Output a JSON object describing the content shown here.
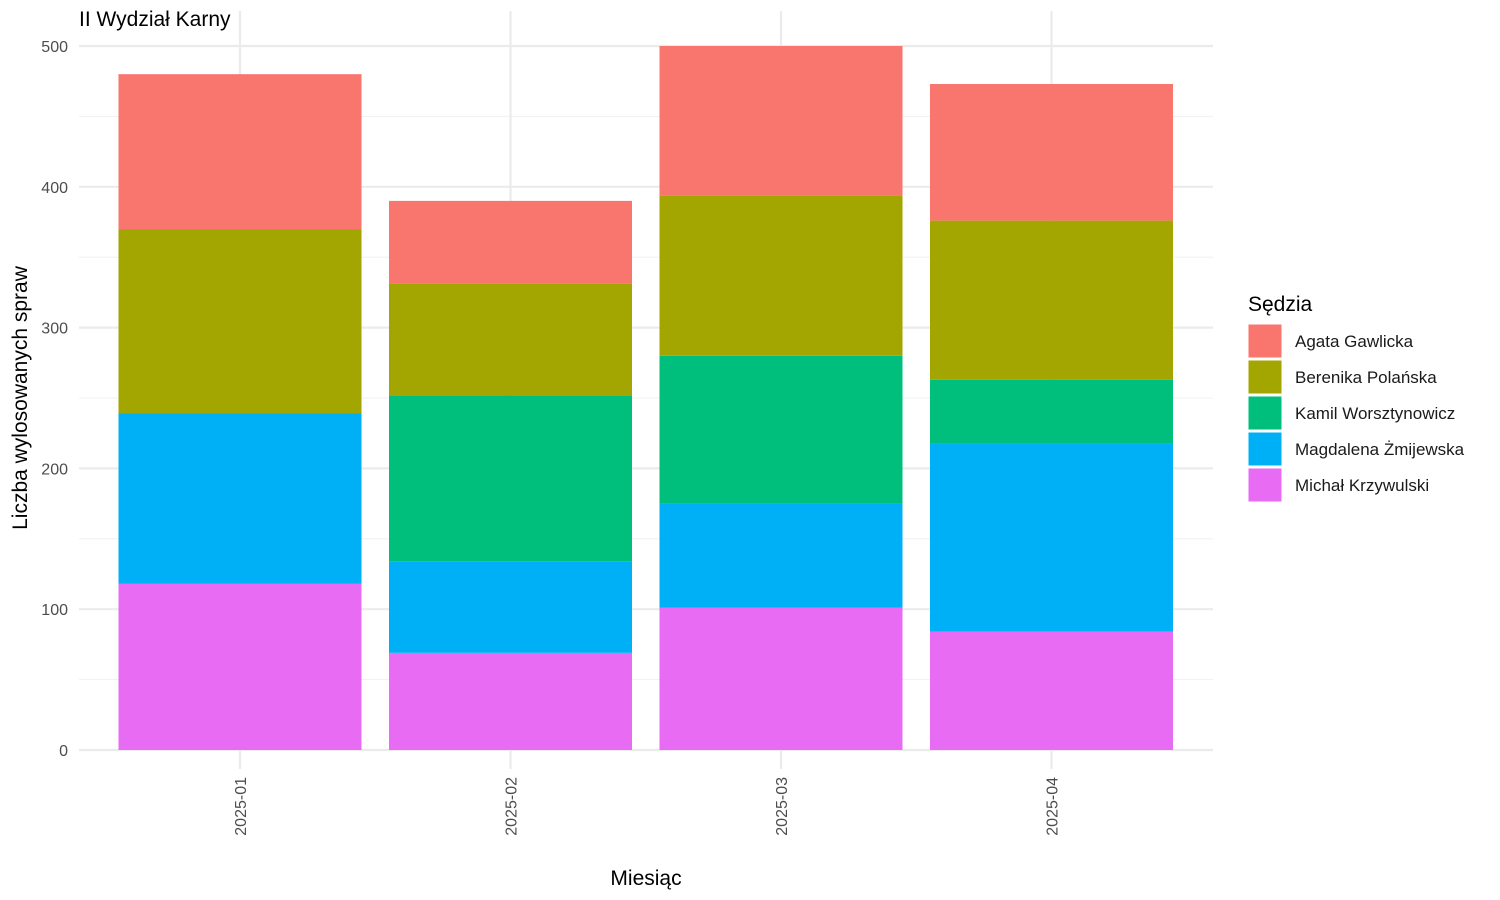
{
  "chart_data": {
    "type": "bar",
    "stacked": true,
    "title": "II Wydział Karny",
    "xlabel": "Miesiąc",
    "ylabel": "Liczba wylosowanych spraw",
    "categories": [
      "2025-01",
      "2025-02",
      "2025-03",
      "2025-04"
    ],
    "ylim": [
      0,
      500
    ],
    "yticks": [
      0,
      100,
      200,
      300,
      400,
      500
    ],
    "grid": true,
    "legend": {
      "title": "Sędzia",
      "position": "right"
    },
    "series": [
      {
        "name": "Michał Krzywulski",
        "color": "#E76BF3",
        "values": [
          118,
          69,
          101,
          84
        ]
      },
      {
        "name": "Magdalena Żmijewska",
        "color": "#00B0F6",
        "values": [
          121,
          65,
          74,
          134
        ]
      },
      {
        "name": "Kamil Worsztynowicz",
        "color": "#00BF7D",
        "values": [
          0,
          118,
          105,
          45
        ]
      },
      {
        "name": "Berenika Polańska",
        "color": "#A3A500",
        "values": [
          131,
          79,
          114,
          113
        ]
      },
      {
        "name": "Agata Gawlicka",
        "color": "#F8766D",
        "values": [
          110,
          59,
          106,
          97
        ]
      }
    ]
  }
}
